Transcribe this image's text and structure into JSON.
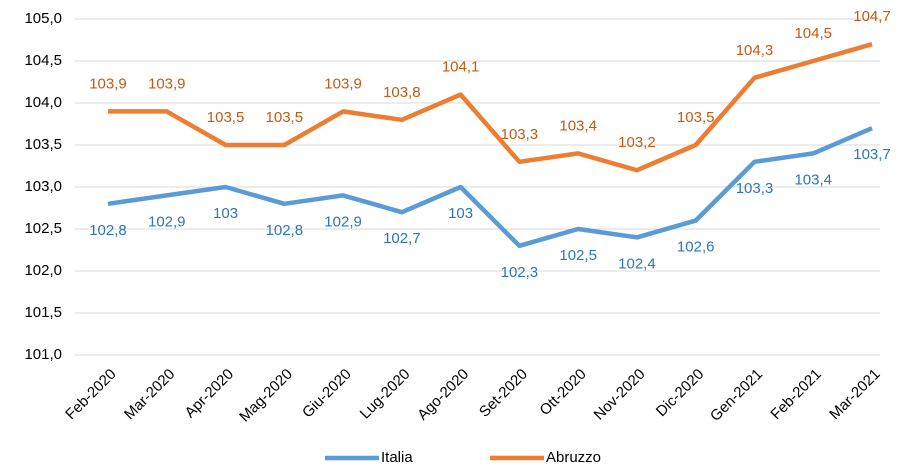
{
  "chart_data": {
    "type": "line",
    "categories": [
      "Feb-2020",
      "Mar-2020",
      "Apr-2020",
      "Mag-2020",
      "Giu-2020",
      "Lug-2020",
      "Ago-2020",
      "Set-2020",
      "Ott-2020",
      "Nov-2020",
      "Dic-2020",
      "Gen-2021",
      "Feb-2021",
      "Mar-2021"
    ],
    "series": [
      {
        "name": "Italia",
        "color": "#5b9bd5",
        "values": [
          102.8,
          102.9,
          103,
          102.8,
          102.9,
          102.7,
          103,
          102.3,
          102.5,
          102.4,
          102.6,
          103.3,
          103.4,
          103.7
        ],
        "value_labels": [
          "102,8",
          "102,9",
          "103",
          "102,8",
          "102,9",
          "102,7",
          "103",
          "102,3",
          "102,5",
          "102,4",
          "102,6",
          "103,3",
          "103,4",
          "103,7"
        ]
      },
      {
        "name": "Abruzzo",
        "color": "#ed7d31",
        "values": [
          103.9,
          103.9,
          103.5,
          103.5,
          103.9,
          103.8,
          104.1,
          103.3,
          103.4,
          103.2,
          103.5,
          104.3,
          104.5,
          104.7
        ],
        "value_labels": [
          "103,9",
          "103,9",
          "103,5",
          "103,5",
          "103,9",
          "103,8",
          "104,1",
          "103,3",
          "103,4",
          "103,2",
          "103,5",
          "104,3",
          "104,5",
          "104,7"
        ]
      }
    ],
    "ylim": [
      101,
      105
    ],
    "yticks": [
      {
        "value": 101,
        "label": "101,0"
      },
      {
        "value": 101.5,
        "label": "101,5"
      },
      {
        "value": 102,
        "label": "102,0"
      },
      {
        "value": 102.5,
        "label": "102,5"
      },
      {
        "value": 103,
        "label": "103,0"
      },
      {
        "value": 103.5,
        "label": "103,5"
      },
      {
        "value": 104,
        "label": "104,0"
      },
      {
        "value": 104.5,
        "label": "104,5"
      },
      {
        "value": 105,
        "label": "105,0"
      }
    ],
    "grid": true,
    "legend": "bottom"
  }
}
